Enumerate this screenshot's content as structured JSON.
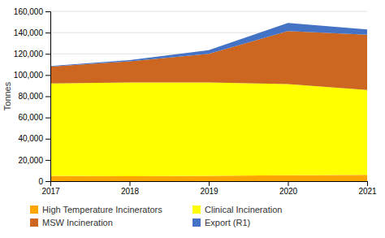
{
  "chart_data": {
    "type": "area",
    "stacked": true,
    "x": [
      2017,
      2018,
      2019,
      2020,
      2021
    ],
    "xlim": [
      2017,
      2021
    ],
    "xticks": [
      2017,
      2018,
      2019,
      2020,
      2021
    ],
    "y_label": "Tonnes",
    "ylim": [
      0,
      160000
    ],
    "yticks": [
      0,
      {
        "value": 20000,
        "label": "20,000"
      },
      {
        "value": 40000,
        "label": "40,000"
      },
      {
        "value": 60000,
        "label": "60,000"
      },
      {
        "value": 80000,
        "label": "80,000"
      },
      {
        "value": 100000,
        "label": "100,000"
      },
      {
        "value": 120000,
        "label": "120,000"
      },
      {
        "value": 140000,
        "label": "140,000"
      },
      {
        "value": 160000,
        "label": "160,000"
      }
    ],
    "grid": true,
    "legend": "bottom",
    "series": [
      {
        "name": "High Temperature Incinerators",
        "color": "#FFA500",
        "values": [
          5000,
          4500,
          5000,
          5500,
          6000
        ]
      },
      {
        "name": "Clinical Incineration",
        "color": "#FFFF00",
        "values": [
          87000,
          88500,
          88000,
          86000,
          80000
        ]
      },
      {
        "name": "MSW Incineration",
        "color": "#CC6620",
        "values": [
          16000,
          20000,
          27000,
          50000,
          52000
        ]
      },
      {
        "name": "Export (R1)",
        "color": "#4472C4",
        "values": [
          500,
          1000,
          3500,
          7500,
          5000
        ]
      }
    ]
  }
}
